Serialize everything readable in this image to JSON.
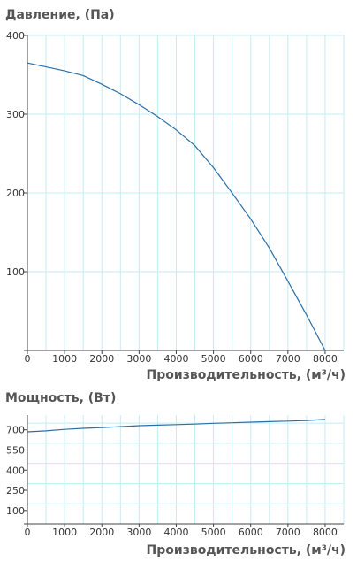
{
  "chart_data": [
    {
      "type": "line",
      "title": "Давление, (Па)",
      "xlabel": "Производительность, (м³/ч)",
      "ylabel": "",
      "xlim": [
        0,
        8500
      ],
      "ylim": [
        0,
        400
      ],
      "x_ticks": [
        0,
        1000,
        2000,
        3000,
        4000,
        5000,
        6000,
        7000,
        8000
      ],
      "y_ticks": [
        100,
        200,
        300,
        400
      ],
      "grid_x_step": 500,
      "grid_y_step": 100,
      "grid": true,
      "color": "#2b6ea6",
      "series": [
        {
          "x": [
            0,
            500,
            1000,
            1500,
            2000,
            2500,
            3000,
            3500,
            4000,
            4500,
            5000,
            5500,
            6000,
            6500,
            7000,
            7500,
            8000
          ],
          "y": [
            365,
            360,
            355,
            349,
            338,
            326,
            312,
            297,
            280,
            260,
            232,
            200,
            167,
            130,
            88,
            45,
            0
          ]
        }
      ]
    },
    {
      "type": "line",
      "title": "Мощность, (Вт)",
      "xlabel": "Производительность, (м³/ч)",
      "ylabel": "",
      "xlim": [
        0,
        8500
      ],
      "ylim": [
        0,
        810
      ],
      "x_ticks": [
        0,
        1000,
        2000,
        3000,
        4000,
        5000,
        6000,
        7000,
        8000
      ],
      "y_ticks": [
        100,
        250,
        400,
        550,
        700
      ],
      "grid_x_step": 500,
      "grid_y_step": 150,
      "grid": true,
      "color": "#2b6ea6",
      "series": [
        {
          "x": [
            0,
            500,
            1000,
            1500,
            2000,
            2500,
            3000,
            3500,
            4000,
            4500,
            5000,
            5500,
            6000,
            6500,
            7000,
            7500,
            8000
          ],
          "y": [
            685,
            692,
            703,
            711,
            717,
            724,
            731,
            735,
            739,
            743,
            749,
            753,
            757,
            761,
            765,
            770,
            778
          ]
        }
      ]
    }
  ]
}
